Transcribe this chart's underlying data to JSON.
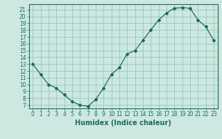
{
  "x": [
    0,
    1,
    2,
    3,
    4,
    5,
    6,
    7,
    8,
    9,
    10,
    11,
    12,
    13,
    14,
    15,
    16,
    17,
    18,
    19,
    20,
    21,
    22,
    23
  ],
  "y": [
    13,
    11.5,
    10,
    9.5,
    8.5,
    7.5,
    7.0,
    6.8,
    7.8,
    9.5,
    11.5,
    12.5,
    14.5,
    15,
    16.5,
    18,
    19.5,
    20.5,
    21.2,
    21.3,
    21.2,
    19.5,
    18.5,
    16.5
  ],
  "line_color": "#1a6b5a",
  "bg_color": "#cce8e0",
  "grid_color": "#8fbfb5",
  "xlabel": "Humidex (Indice chaleur)",
  "ylim": [
    6.5,
    21.8
  ],
  "xlim": [
    -0.5,
    23.5
  ],
  "yticks": [
    7,
    8,
    9,
    10,
    11,
    12,
    13,
    14,
    15,
    16,
    17,
    18,
    19,
    20,
    21
  ],
  "xticks": [
    0,
    1,
    2,
    3,
    4,
    5,
    6,
    7,
    8,
    9,
    10,
    11,
    12,
    13,
    14,
    15,
    16,
    17,
    18,
    19,
    20,
    21,
    22,
    23
  ],
  "tick_label_fontsize": 5.5,
  "xlabel_fontsize": 7,
  "marker": "D",
  "marker_size": 2.0,
  "linewidth": 0.9
}
